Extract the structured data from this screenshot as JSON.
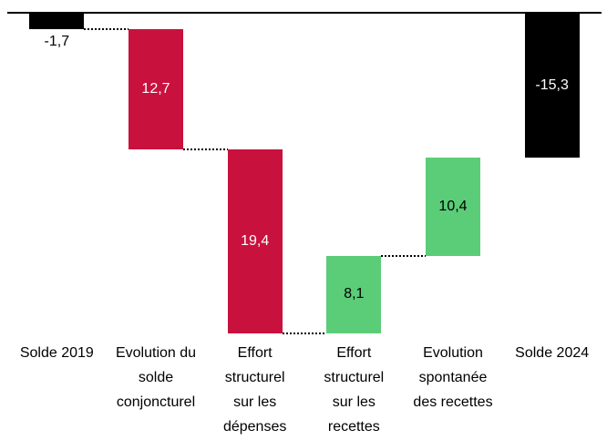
{
  "chart_data": {
    "type": "waterfall",
    "title": "",
    "background": "#FFFFFF",
    "baseline": {
      "value": 0,
      "color": "#000000"
    },
    "connector_style": "dotted",
    "legend": "none",
    "gridlines": false,
    "value_axis_visible": false,
    "colors": {
      "total": "#000000",
      "decrease": "#C9113E",
      "increase": "#5BCC78"
    },
    "categories": [
      "Solde 2019",
      "Evolution du solde conjoncturel",
      "Effort structurel sur les dépenses",
      "Effort structurel sur les recettes",
      "Evolution spontanée des recettes",
      "Solde 2024"
    ],
    "bars": [
      {
        "id": "solde-2019",
        "category_lines": "Solde 2019",
        "kind": "total",
        "value": -1.7,
        "label": "-1,7",
        "color": "#000000",
        "label_color": "#000000",
        "label_placement": "below"
      },
      {
        "id": "evolution-du-solde-conjoncturel",
        "category_lines": "Evolution du\nsolde\nconjoncturel",
        "kind": "decrease",
        "value": 12.7,
        "label": "12,7",
        "color": "#C9113E",
        "label_color": "#FFFFFF",
        "label_placement": "inside"
      },
      {
        "id": "effort-structurel-sur-les-depenses",
        "category_lines": "Effort\nstructurel\nsur les\ndépenses",
        "kind": "decrease",
        "value": 19.4,
        "label": "19,4",
        "color": "#C9113E",
        "label_color": "#FFFFFF",
        "label_placement": "inside"
      },
      {
        "id": "effort-structurel-sur-les-recettes",
        "category_lines": "Effort\nstructurel\nsur les\nrecettes",
        "kind": "increase",
        "value": 8.1,
        "label": "8,1",
        "color": "#5BCC78",
        "label_color": "#000000",
        "label_placement": "inside"
      },
      {
        "id": "evolution-spontanee-des-recettes",
        "category_lines": "Evolution\nspontanée\ndes recettes",
        "kind": "increase",
        "value": 10.4,
        "label": "10,4",
        "color": "#5BCC78",
        "label_color": "#000000",
        "label_placement": "inside"
      },
      {
        "id": "solde-2024",
        "category_lines": "Solde 2024",
        "kind": "total",
        "value": -15.3,
        "label": "-15,3",
        "color": "#000000",
        "label_color": "#FFFFFF",
        "label_placement": "inside"
      }
    ]
  }
}
